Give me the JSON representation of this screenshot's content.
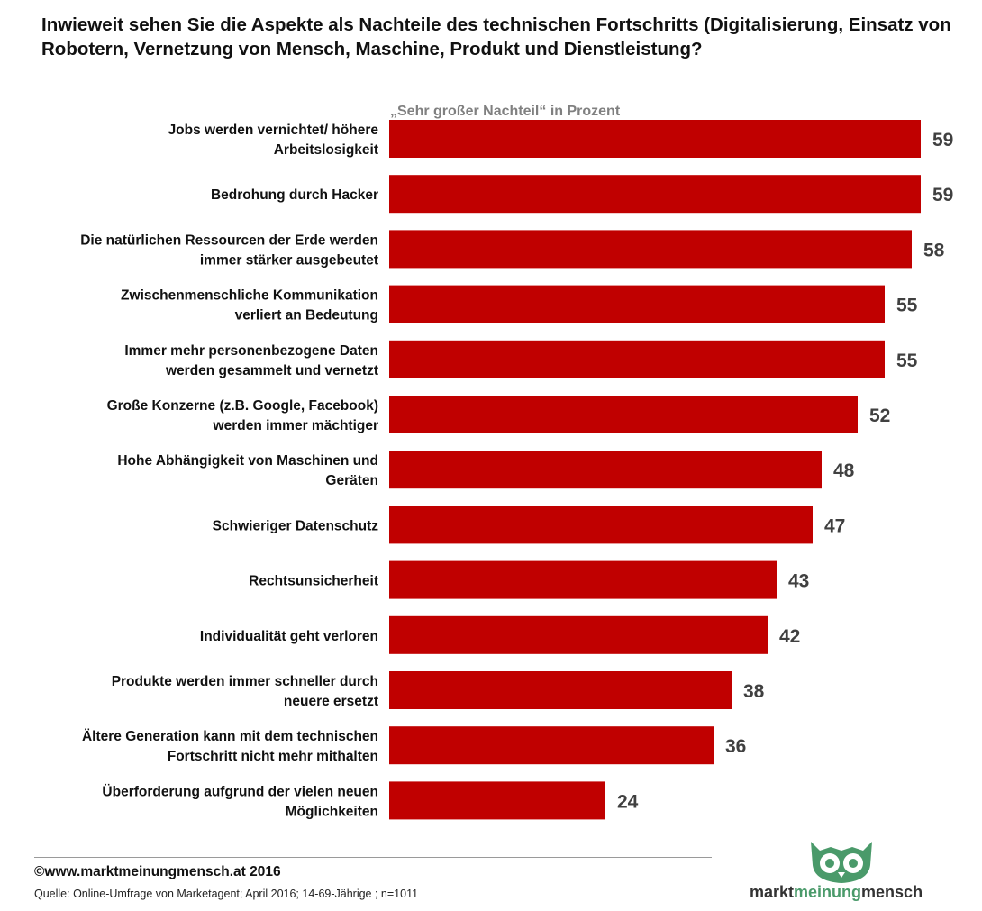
{
  "title": "Inwieweit sehen Sie die Aspekte als Nachteile des technischen Fortschritts (Digitalisierung, Einsatz von Robotern, Vernetzung von Mensch, Maschine, Produkt und Dienstleistung?",
  "colors": {
    "bar": "#c00000",
    "value_text": "#404040",
    "subtitle": "#808080",
    "brand_green": "#4a9a6a"
  },
  "chart_data": {
    "type": "bar",
    "orientation": "horizontal",
    "subtitle": "„Sehr großer Nachteil“ in Prozent",
    "categories": [
      [
        "Jobs werden vernichtet/ höhere",
        "Arbeitslosigkeit"
      ],
      [
        "Bedrohung durch Hacker"
      ],
      [
        "Die natürlichen Ressourcen der Erde werden",
        "immer stärker ausgebeutet"
      ],
      [
        "Zwischenmenschliche Kommunikation",
        "verliert an Bedeutung"
      ],
      [
        "Immer mehr personenbezogene Daten",
        "werden gesammelt und vernetzt"
      ],
      [
        "Große Konzerne (z.B. Google, Facebook)",
        "werden immer mächtiger"
      ],
      [
        "Hohe Abhängigkeit von Maschinen und",
        "Geräten"
      ],
      [
        "Schwieriger Datenschutz"
      ],
      [
        "Rechtsunsicherheit"
      ],
      [
        "Individualität geht verloren"
      ],
      [
        "Produkte werden immer schneller durch",
        "neuere ersetzt"
      ],
      [
        "Ältere Generation kann mit dem technischen",
        "Fortschritt nicht mehr mithalten"
      ],
      [
        "Überforderung aufgrund der vielen neuen",
        "Möglichkeiten"
      ]
    ],
    "values": [
      59,
      59,
      58,
      55,
      55,
      52,
      48,
      47,
      43,
      42,
      38,
      36,
      24
    ],
    "xlim": [
      0,
      100
    ],
    "grid": false,
    "legend": "none"
  },
  "footer": {
    "copyright": "©www.marktmeinungmensch.at 2016",
    "source": "Quelle: Online-Umfrage von Marketagent; April 2016; 14-69-Jährige ; n=1011"
  },
  "brand": {
    "part1": "markt",
    "part2": "meinung",
    "part3": "mensch",
    "icon": "owl-logo-icon"
  }
}
